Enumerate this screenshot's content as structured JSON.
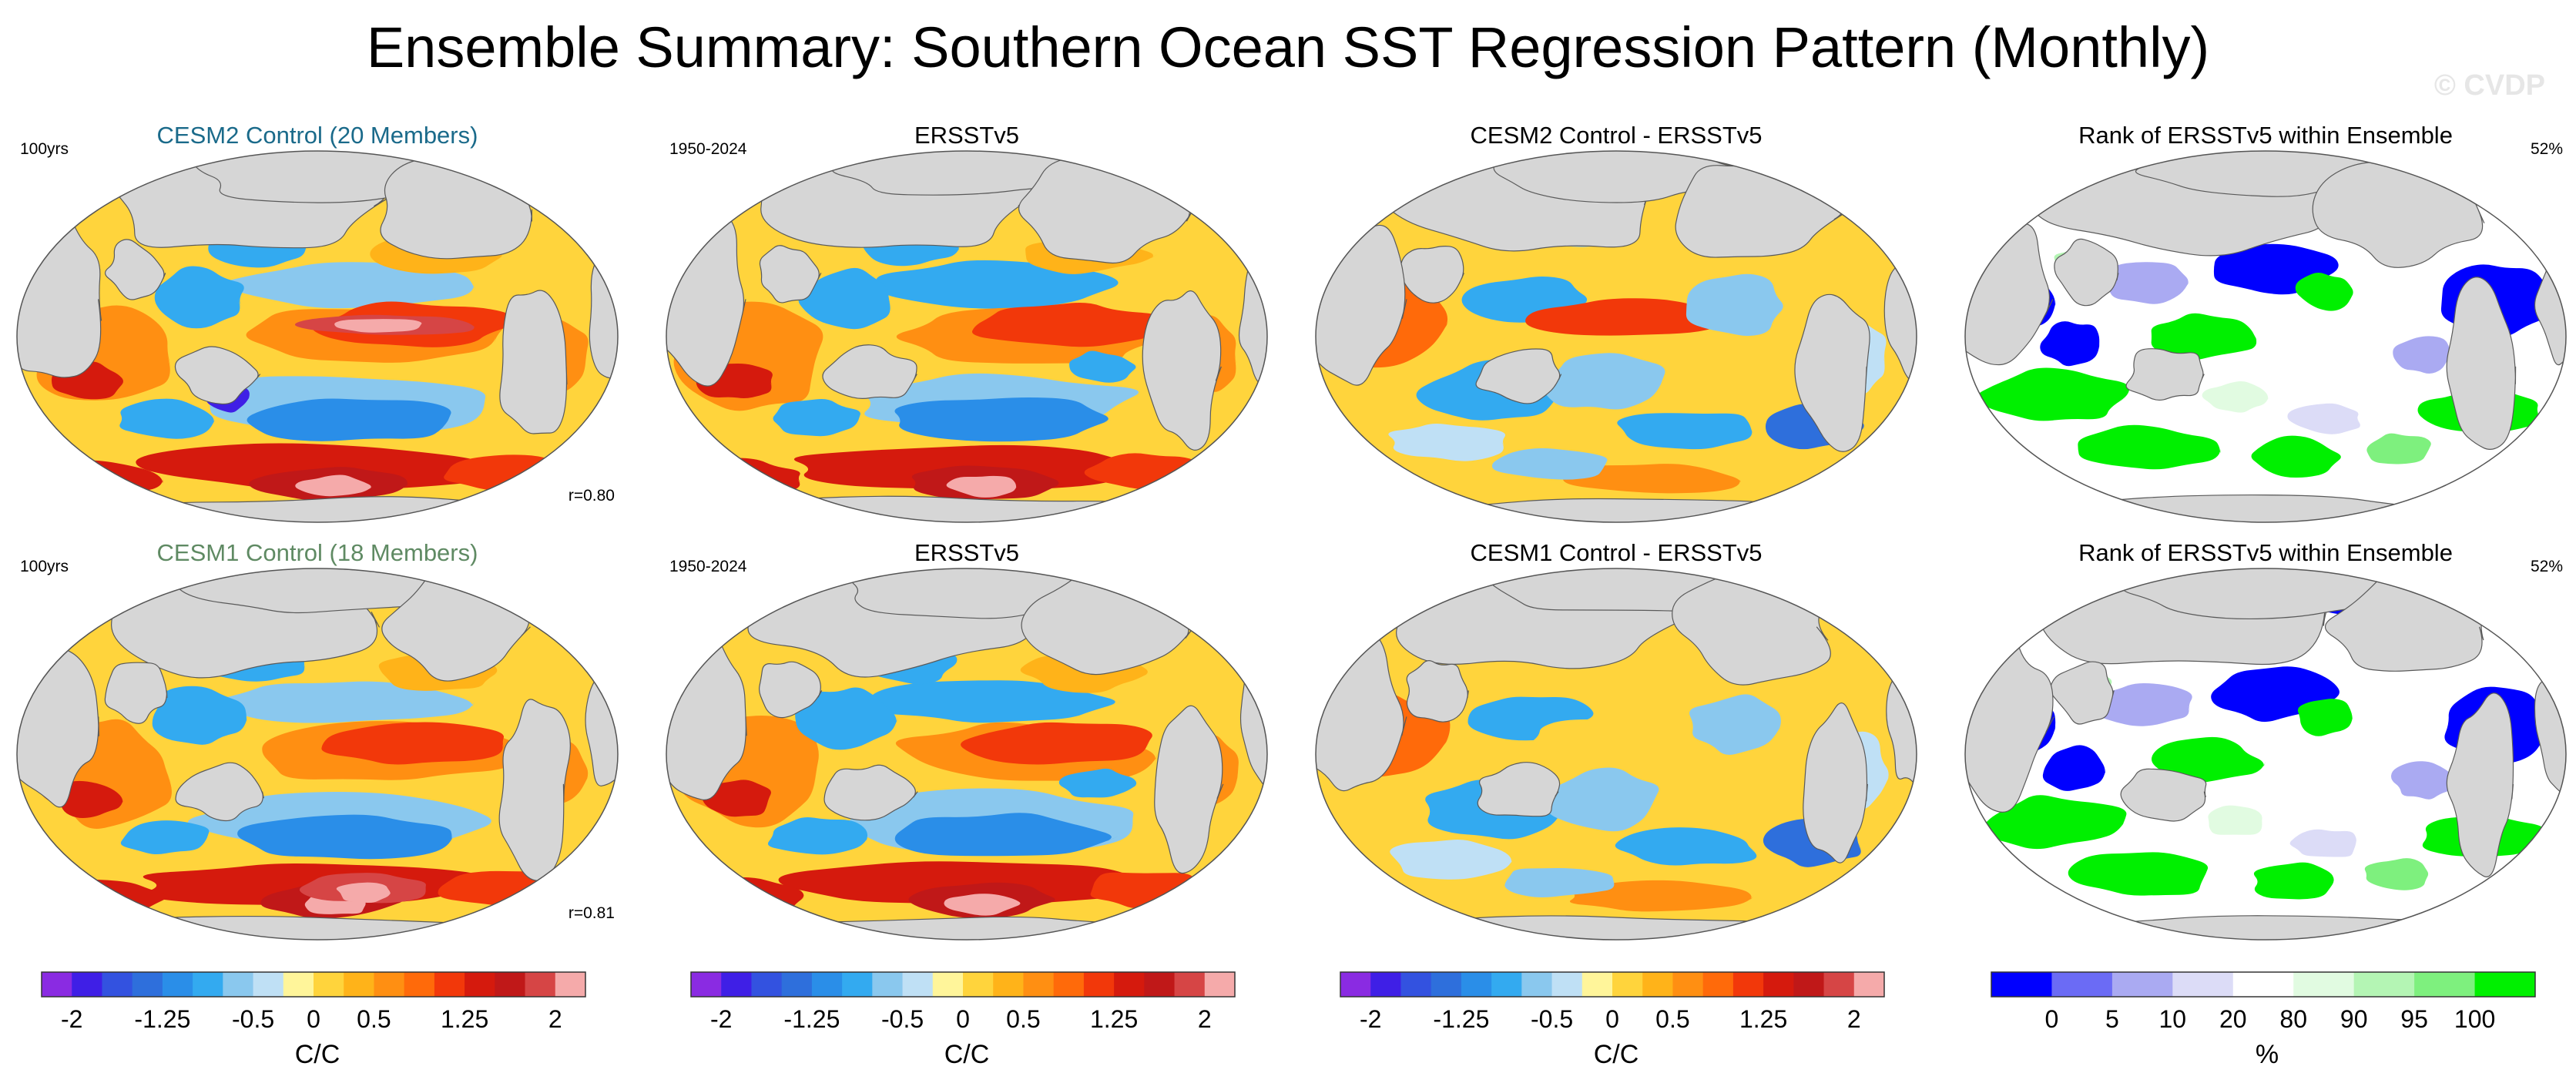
{
  "title": "Ensemble Summary: Southern Ocean SST Regression Pattern (Monthly)",
  "watermark": "© CVDP",
  "colors": {
    "land": "#d6d6d6",
    "model_label_row1": "#1a6a8a",
    "model_label_row2": "#5f8a63",
    "diverging": [
      "#8a2be2",
      "#3f1fe6",
      "#3352e0",
      "#2e6fdc",
      "#2a8ee8",
      "#33aaf0",
      "#8ac8ee",
      "#bfe0f5",
      "#fff59a",
      "#ffd43c",
      "#ffb319",
      "#ff8f12",
      "#ff6a0a",
      "#f2380a",
      "#d51a0d",
      "#c01818",
      "#d64545",
      "#f5aaaa"
    ],
    "rank": [
      "#0000ff",
      "#6b6bf5",
      "#aaaaf2",
      "#dcdcf7",
      "#ffffff",
      "#e1fbe1",
      "#b4f5b4",
      "#7ef07e",
      "#00f000"
    ]
  },
  "rows": [
    {
      "panels": [
        {
          "title": "CESM2 Control (20 Members)",
          "left": "100yrs",
          "corr": "r=0.80",
          "kind": "model"
        },
        {
          "title": "ERSSTv5",
          "left": "1950-2024",
          "kind": "obs"
        },
        {
          "title": "CESM2 Control - ERSSTv5",
          "kind": "diff"
        },
        {
          "title": "Rank of ERSSTv5 within Ensemble",
          "right": "52%",
          "kind": "rank"
        }
      ]
    },
    {
      "panels": [
        {
          "title": "CESM1 Control (18 Members)",
          "left": "100yrs",
          "corr": "r=0.81",
          "kind": "model"
        },
        {
          "title": "ERSSTv5",
          "left": "1950-2024",
          "kind": "obs"
        },
        {
          "title": "CESM1 Control - ERSSTv5",
          "kind": "diff"
        },
        {
          "title": "Rank of ERSSTv5 within Ensemble",
          "right": "52%",
          "kind": "rank"
        }
      ]
    }
  ],
  "colorbars": [
    {
      "units": "C/C",
      "ticks": [
        "-2",
        "-1.25",
        "-0.5",
        "0",
        "0.5",
        "1.25",
        "2"
      ],
      "tick_values": [
        -2,
        -1.25,
        -0.5,
        0,
        0.5,
        1.25,
        2
      ],
      "range": [
        -2.25,
        2.25
      ],
      "levels": 18
    },
    {
      "units": "C/C",
      "ticks": [
        "-2",
        "-1.25",
        "-0.5",
        "0",
        "0.5",
        "1.25",
        "2"
      ],
      "tick_values": [
        -2,
        -1.25,
        -0.5,
        0,
        0.5,
        1.25,
        2
      ],
      "range": [
        -2.25,
        2.25
      ],
      "levels": 18
    },
    {
      "units": "C/C",
      "ticks": [
        "-2",
        "-1.25",
        "-0.5",
        "0",
        "0.5",
        "1.25",
        "2"
      ],
      "tick_values": [
        -2,
        -1.25,
        -0.5,
        0,
        0.5,
        1.25,
        2
      ],
      "range": [
        -2.25,
        2.25
      ],
      "levels": 18
    },
    {
      "units": "%",
      "ticks": [
        "0",
        "5",
        "10",
        "20",
        "80",
        "90",
        "95",
        "100"
      ],
      "tick_values": [
        0,
        5,
        10,
        20,
        80,
        90,
        95,
        100
      ],
      "levels": 9,
      "rank": true
    }
  ],
  "chart_data": {
    "type": "heatmap",
    "title": "Ensemble Summary: Southern Ocean SST Regression Pattern (Monthly)",
    "projection": "Robinson (Pacific-centered)",
    "panels": [
      {
        "row": 1,
        "col": 1,
        "title": "CESM2 Control (20 Members)",
        "period": "100yrs",
        "pattern_correlation": 0.8,
        "units": "C/C",
        "range": [
          -2,
          2
        ]
      },
      {
        "row": 1,
        "col": 2,
        "title": "ERSSTv5",
        "period": "1950-2024",
        "units": "C/C",
        "range": [
          -2,
          2
        ]
      },
      {
        "row": 1,
        "col": 3,
        "title": "CESM2 Control - ERSSTv5",
        "units": "C/C",
        "range": [
          -2,
          2
        ]
      },
      {
        "row": 1,
        "col": 4,
        "title": "Rank of ERSSTv5 within Ensemble",
        "percent_within_10_90": "52%",
        "units": "%",
        "range": [
          0,
          100
        ]
      },
      {
        "row": 2,
        "col": 1,
        "title": "CESM1 Control (18 Members)",
        "period": "100yrs",
        "pattern_correlation": 0.81,
        "units": "C/C",
        "range": [
          -2,
          2
        ]
      },
      {
        "row": 2,
        "col": 2,
        "title": "ERSSTv5",
        "period": "1950-2024",
        "units": "C/C",
        "range": [
          -2,
          2
        ]
      },
      {
        "row": 2,
        "col": 3,
        "title": "CESM1 Control - ERSSTv5",
        "units": "C/C",
        "range": [
          -2,
          2
        ]
      },
      {
        "row": 2,
        "col": 4,
        "title": "Rank of ERSSTv5 within Ensemble",
        "percent_within_10_90": "52%",
        "units": "%",
        "range": [
          0,
          100
        ]
      }
    ],
    "colorbar_sst": {
      "label": "C/C",
      "ticks": [
        -2,
        -1.25,
        -0.5,
        0,
        0.5,
        1.25,
        2
      ]
    },
    "colorbar_rank": {
      "label": "%",
      "ticks": [
        0,
        5,
        10,
        20,
        80,
        90,
        95,
        100
      ]
    }
  }
}
